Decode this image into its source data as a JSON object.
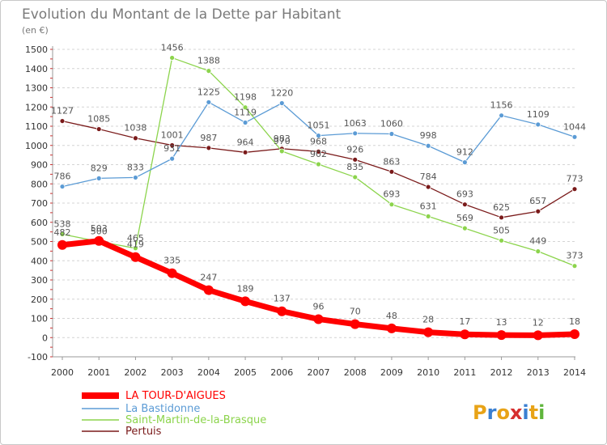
{
  "chart_data": {
    "type": "line",
    "title": "Evolution du Montant de la Dette par Habitant",
    "subtitle": "(en €)",
    "x": [
      "2000",
      "2001",
      "2002",
      "2003",
      "2004",
      "2005",
      "2006",
      "2007",
      "2008",
      "2009",
      "2010",
      "2011",
      "2012",
      "2013",
      "2014"
    ],
    "ylim": [
      -100,
      1500
    ],
    "yticks": [
      -100,
      0,
      100,
      200,
      300,
      400,
      500,
      600,
      700,
      800,
      900,
      1000,
      1100,
      1200,
      1300,
      1400,
      1500
    ],
    "grid": "horizontal-dashed",
    "legend_position": "bottom-left",
    "series": [
      {
        "name": "LA TOUR-D'AIGUES",
        "color": "#ff0000",
        "values": [
          482,
          503,
          419,
          335,
          247,
          189,
          137,
          96,
          70,
          48,
          28,
          17,
          13,
          12,
          18
        ]
      },
      {
        "name": "La Bastidonne",
        "color": "#5b9bd5",
        "values": [
          786,
          829,
          833,
          931,
          1225,
          1119,
          1220,
          1051,
          1063,
          1060,
          998,
          912,
          1156,
          1109,
          1044
        ]
      },
      {
        "name": "Saint-Martin-de-la-Brasque",
        "color": "#8cd44c",
        "values": [
          538,
          500,
          465,
          1456,
          1388,
          1198,
          970,
          902,
          835,
          693,
          631,
          569,
          505,
          449,
          373
        ]
      },
      {
        "name": "Pertuis",
        "color": "#7a1a1a",
        "values": [
          1127,
          1085,
          1038,
          1001,
          987,
          964,
          983,
          968,
          926,
          863,
          784,
          693,
          625,
          657,
          773
        ]
      }
    ]
  },
  "logo": {
    "text": "Proxiti"
  }
}
